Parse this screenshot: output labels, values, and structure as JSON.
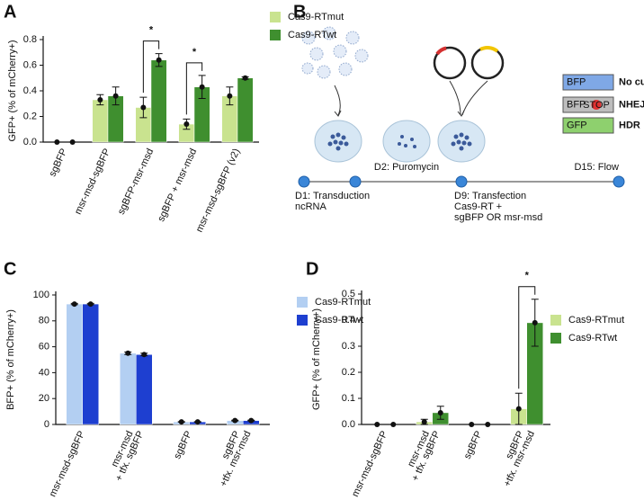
{
  "panel_labels": [
    "A",
    "B",
    "C",
    "D"
  ],
  "chart_data": [
    {
      "type": "bar",
      "ylabel": "GFP+ (% of mCherry+)",
      "categories": [
        [
          "sgBFP"
        ],
        [
          "msr-msd-sgBFP"
        ],
        [
          "sgBFP-msr-msd"
        ],
        [
          "sgBFP + msr-msd"
        ],
        [
          "msr-msd-sgBFP (v2)"
        ]
      ],
      "series": [
        {
          "name": "Cas9-RTmut",
          "color": "#c9e38f",
          "values": [
            0,
            0.33,
            0.27,
            0.14,
            0.36
          ],
          "errors": [
            0,
            0.04,
            0.08,
            0.04,
            0.07
          ]
        },
        {
          "name": "Cas9-RTwt",
          "color": "#3f8f2f",
          "values": [
            0,
            0.36,
            0.64,
            0.43,
            0.5
          ],
          "errors": [
            0,
            0.07,
            0.05,
            0.09,
            0.01
          ]
        }
      ],
      "ylim": [
        0,
        0.8
      ],
      "yticks": [
        {
          "value": 0,
          "label": "0.0"
        },
        0.2,
        0.4,
        0.6,
        0.8
      ],
      "annotations": [
        {
          "text": "*",
          "category": 2
        },
        {
          "text": "*",
          "category": 3
        }
      ]
    },
    {
      "type": "bar",
      "ylabel": "BFP+ (% of mCherry+)",
      "categories": [
        [
          "msr-msd-sgBFP"
        ],
        [
          "msr-msd",
          "+ tfx. sgBFP"
        ],
        [
          "sgBFP"
        ],
        [
          "sgBFP",
          "+tfx. msr-msd"
        ]
      ],
      "series": [
        {
          "name": "Cas9-RTmut",
          "color": "#b3cff2",
          "values": [
            93,
            55,
            2,
            3
          ],
          "errors": [
            0.5,
            1,
            0.2,
            0.3
          ]
        },
        {
          "name": "Cas9-RTwt",
          "color": "#1e3fd0",
          "values": [
            93,
            54,
            2,
            3
          ],
          "errors": [
            0.5,
            1,
            0.2,
            0.3
          ]
        }
      ],
      "ylim": [
        0,
        100
      ],
      "yticks": [
        0,
        20,
        40,
        60,
        80,
        100
      ],
      "annotations": []
    },
    {
      "type": "bar",
      "ylabel": "GFP+ (% of mCherry+)",
      "categories": [
        [
          "msr-msd-sgBFP"
        ],
        [
          "msr-msd",
          "+ tfx. sgBFP"
        ],
        [
          "sgBFP"
        ],
        [
          "sgBFP",
          "+tfx. msr-msd"
        ]
      ],
      "series": [
        {
          "name": "Cas9-RTmut",
          "color": "#c9e38f",
          "values": [
            0,
            0.01,
            0,
            0.06
          ],
          "errors": [
            0,
            0.01,
            0,
            0.06
          ]
        },
        {
          "name": "Cas9-RTwt",
          "color": "#3f8f2f",
          "values": [
            0,
            0.045,
            0,
            0.39
          ],
          "errors": [
            0,
            0.025,
            0,
            0.09
          ]
        }
      ],
      "ylim": [
        0,
        0.5
      ],
      "yticks": [
        {
          "value": 0,
          "label": "0.0"
        },
        0.1,
        0.2,
        0.3,
        0.4,
        0.5
      ],
      "annotations": [
        {
          "text": "*",
          "category": 3
        }
      ]
    }
  ],
  "diagram": {
    "legend": [
      {
        "box": "BFP",
        "label": "No cut"
      },
      {
        "box": "BFP",
        "label": "NHEJ"
      },
      {
        "box": "GFP",
        "label": "HDR"
      }
    ],
    "stop": "STOP",
    "timeline": [
      [
        "D1: Transduction",
        "ncRNA"
      ],
      [
        "D2: Puromycin"
      ],
      [
        "D9: Transfection",
        "Cas9-RT +",
        "sgBFP OR msr-msd"
      ],
      [
        "D15: Flow"
      ]
    ]
  }
}
